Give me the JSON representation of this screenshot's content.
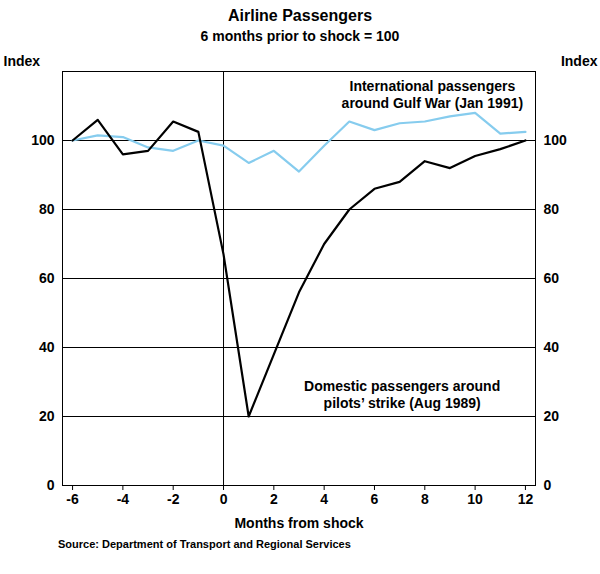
{
  "chart_data": {
    "type": "line",
    "title": "Airline Passengers",
    "subtitle": "6 months prior to shock = 100",
    "xlabel": "Months from shock",
    "ylabel": "Index",
    "y2label": "Index",
    "source": "Source: Department of Transport and Regional Services",
    "x": [
      -6,
      -5,
      -4,
      -3,
      -2,
      -1,
      0,
      1,
      2,
      3,
      4,
      5,
      6,
      7,
      8,
      9,
      10,
      11,
      12
    ],
    "series": [
      {
        "name": "International passengers\naround Gulf War (Jan 1991)",
        "color": "#86ccee",
        "values": [
          100,
          101.5,
          101,
          98,
          97,
          100,
          98.5,
          93.5,
          97,
          91,
          98.5,
          105.5,
          103,
          105,
          105.5,
          107,
          108,
          102,
          102.5
        ]
      },
      {
        "name": "Domestic passengers around\npilots’ strike (Aug 1989)",
        "color": "#000000",
        "values": [
          100,
          106,
          96,
          97,
          105.5,
          102.5,
          67,
          20,
          38,
          56,
          70,
          80,
          86,
          88,
          94,
          92,
          95.5,
          97.5,
          100
        ]
      }
    ],
    "vlines": [
      0
    ],
    "xlim": [
      -6.4,
      12.4
    ],
    "xticks": [
      -6,
      -4,
      -2,
      0,
      2,
      4,
      6,
      8,
      10,
      12
    ],
    "ylim": [
      0,
      120
    ],
    "yticks": [
      0,
      20,
      40,
      60,
      80,
      100
    ],
    "y2lim": [
      0,
      120
    ],
    "y2ticks": [
      0,
      20,
      40,
      60,
      80,
      100
    ],
    "grid": true
  }
}
